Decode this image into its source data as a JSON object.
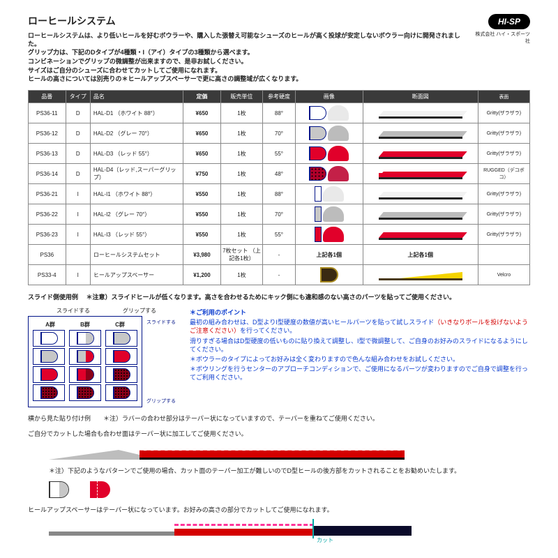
{
  "title": "ローヒールシステム",
  "intro": [
    "ローヒールシステムは、より低いヒールを好むボウラーや、購入した張替え可能なシューズのヒールが高く投球が安定しないボウラー向けに開発されました。",
    "グリップ力は、下記のDタイプが4種類・I（アイ）タイプの3種類から選べます。",
    "コンビネーションでグリップの微調整が出来ますので、是非お試しください。",
    "サイズはご自分のシューズに合わせてカットしてご使用になれます。",
    "ヒールの高さについては別売りの＊ヒールアップスペーサーで更に高さの調整域が広くなります。"
  ],
  "logo": {
    "text": "HI-SP",
    "sub": "株式会社 ハイ・スポーツ社"
  },
  "columns": [
    "品番",
    "タイプ",
    "品名",
    "定価",
    "販売単位",
    "参考硬度",
    "画像",
    "断面図",
    "表面"
  ],
  "rows": [
    {
      "code": "PS36-11",
      "type": "D",
      "name": "HAL-D1 （ホワイト 88°）",
      "price": "¥650",
      "unit": "1枚",
      "hard": "88°",
      "heel_fill": "#ffffff",
      "heel_border": "#001388",
      "top_fill": "#e9e9e9",
      "side_top": "#f2f2f2",
      "surface": "Gritty(ザラザラ)"
    },
    {
      "code": "PS36-12",
      "type": "D",
      "name": "HAL-D2 （グレー 70°）",
      "price": "¥650",
      "unit": "1枚",
      "hard": "70°",
      "heel_fill": "#c7c7c7",
      "heel_border": "#001388",
      "top_fill": "#bcbcbc",
      "side_top": "#bcbcbc",
      "surface": "Gritty(ザラザラ)"
    },
    {
      "code": "PS36-13",
      "type": "D",
      "name": "HAL-D3 （レッド 55°）",
      "price": "¥650",
      "unit": "1枚",
      "hard": "55°",
      "heel_fill": "#e1002a",
      "heel_border": "#001388",
      "top_fill": "#e1002a",
      "side_top": "#e1002a",
      "surface": "Gritty(ザラザラ)"
    },
    {
      "code": "PS36-14",
      "type": "D",
      "name": "HAL-D4（レッド,スーパーグリップ）",
      "price": "¥750",
      "unit": "1枚",
      "hard": "48°",
      "heel_fill": "#b0002a",
      "heel_border": "#001388",
      "dots": true,
      "top_fill": "#c42048",
      "side_top": "#e1002a",
      "rugged": true,
      "surface": "RUGGED（デコボコ）"
    },
    {
      "code": "PS36-21",
      "type": "I",
      "name": "HAL-I1 （ホワイト 88°）",
      "price": "¥550",
      "unit": "1枚",
      "hard": "88°",
      "heel_fill": "#ffffff",
      "heel_border": "#001388",
      "shape": "I",
      "top_fill": "#e9e9e9",
      "side_top": "#f2f2f2",
      "surface": "Gritty(ザラザラ)"
    },
    {
      "code": "PS36-22",
      "type": "I",
      "name": "HAL-I2 （グレー 70°）",
      "price": "¥550",
      "unit": "1枚",
      "hard": "70°",
      "heel_fill": "#c7c7c7",
      "heel_border": "#001388",
      "shape": "I",
      "top_fill": "#bcbcbc",
      "side_top": "#bcbcbc",
      "surface": "Gritty(ザラザラ)"
    },
    {
      "code": "PS36-23",
      "type": "I",
      "name": "HAL-I3 （レッド 55°）",
      "price": "¥550",
      "unit": "1枚",
      "hard": "55°",
      "heel_fill": "#e1002a",
      "heel_border": "#001388",
      "shape": "I",
      "top_fill": "#e1002a",
      "side_top": "#e1002a",
      "surface": "Gritty(ザラザラ)"
    },
    {
      "code": "PS36",
      "type": "",
      "name": "ローヒールシステムセット",
      "price": "¥3,980",
      "unit": "7枚セット\n（上記各1枚）",
      "hard": "-",
      "set_note": "上記各1個",
      "surface": ""
    },
    {
      "code": "PS33-4",
      "type": "I",
      "name": "ヒールアップスペーサー",
      "price": "¥1,200",
      "unit": "1枚",
      "hard": "-",
      "spacer": true,
      "heel_fill": "#3a2a12",
      "side_top": "#f5d400",
      "surface": "Velcro"
    }
  ],
  "usage_title": "スライド側使用例",
  "usage_warn": "＊注意）スライドヒールが低くなります。高さを合わせるためにキック側にも違和感のない高さのパーツを貼ってご使用ください。",
  "grid": {
    "slide_label": "スライドする",
    "grip_label": "グリップする",
    "cols": [
      "A群",
      "B群",
      "C群"
    ],
    "side_top": "スライドする",
    "side_bottom": "グリップする",
    "cells": [
      [
        {
          "s": "D",
          "c": "#fff"
        },
        {
          "s": "D",
          "c": "#fff",
          "half": "#c7c7c7"
        },
        {
          "s": "D",
          "c": "#c7c7c7"
        }
      ],
      [
        {
          "s": "D",
          "c": "#c7c7c7"
        },
        {
          "s": "D",
          "c": "#c7c7c7",
          "half": "#e1002a"
        },
        {
          "s": "D",
          "c": "#e1002a"
        }
      ],
      [
        {
          "s": "D",
          "c": "#e1002a"
        },
        {
          "s": "D",
          "c": "#e1002a",
          "half": "#8a0018"
        },
        {
          "s": "D",
          "c": "#8a0018",
          "dots": true
        }
      ],
      [
        {
          "s": "D",
          "c": "#8a0018",
          "dots": true
        },
        {
          "s": "D",
          "c": "#8a0018",
          "dots": true
        },
        {
          "s": "D",
          "c": "#8a0018",
          "dots": true
        }
      ]
    ]
  },
  "tips_title": "＊ご利用のポイント",
  "tips": [
    {
      "t": "最初の組み合わせは、D型よりI型硬度の数値が高いヒールパーツを貼って試しスライド",
      "cls": "blue"
    },
    {
      "t": "（いきなりボールを投げないようご注意ください）",
      "cls": "red"
    },
    {
      "t": "を行ってください。",
      "cls": "blue"
    },
    {
      "t": "滑りすぎる場合はD型硬度の低いものに貼り換えて調整し、I型で微調整して、ご自身のお好みのスライドになるようにしてください。",
      "cls": "blue"
    },
    {
      "t": "＊ボウラーのタイプによってお好みは全く変わりますので色んな組み合わせをお試しください。",
      "cls": "blue"
    },
    {
      "t": "＊ボウリングを行うセンターのアプローチコンディションで、ご使用になるパーツが変わりますのでご自身で調整を行ってご利用ください。",
      "cls": "blue"
    }
  ],
  "notes": [
    "横から見た貼り付け例　　＊注）ラバーの合わせ部分はテーパー状になっていますので、テーパーを重ねてご使用ください。",
    "ご自分でカットした場合も合わせ面はテーパー状に加工してご使用ください。"
  ],
  "note2": "＊注）下記のようなパターンでご使用の場合、カット面のテーパー加工が難しいのでD型ヒールの後方部をカットされることをお勧めいたします。",
  "note3": "ヒールアップスペーサーはテーパー状になっています。お好みの高さの部分でカットしてご使用になれます。",
  "cut_label": "カット"
}
